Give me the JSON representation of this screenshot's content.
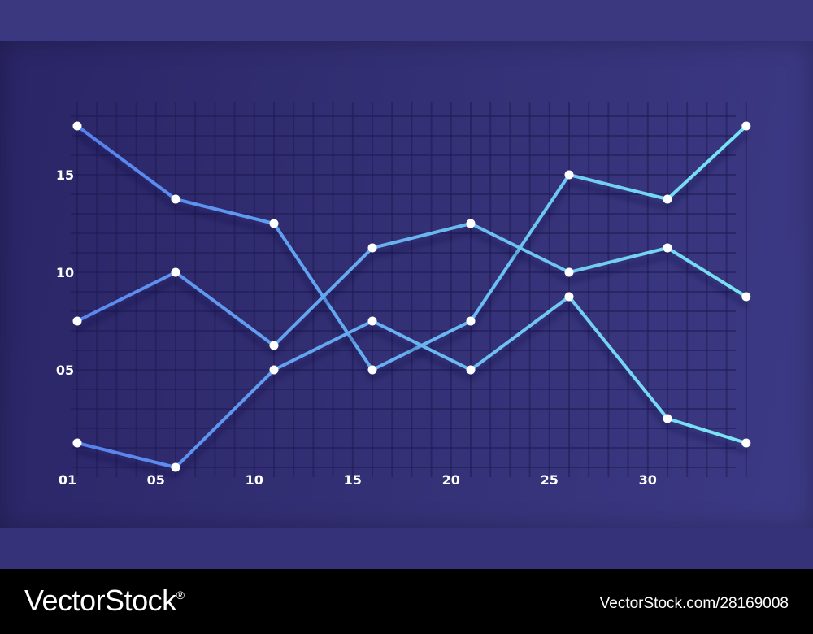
{
  "chart_data": {
    "type": "line",
    "title": "",
    "xlabel": "",
    "ylabel": "",
    "x": [
      1,
      6,
      11,
      16,
      21,
      26,
      31,
      35
    ],
    "x_ticks": [
      {
        "value": 1,
        "label": "01"
      },
      {
        "value": 5,
        "label": "05"
      },
      {
        "value": 10,
        "label": "10"
      },
      {
        "value": 15,
        "label": "15"
      },
      {
        "value": 20,
        "label": "20"
      },
      {
        "value": 25,
        "label": "25"
      },
      {
        "value": 30,
        "label": "30"
      }
    ],
    "y_ticks": [
      {
        "value": 5,
        "label": "05"
      },
      {
        "value": 10,
        "label": "10"
      },
      {
        "value": 15,
        "label": "15"
      }
    ],
    "xlim": [
      0,
      35
    ],
    "ylim": [
      0,
      19
    ],
    "grid": true,
    "legend": "none",
    "series": [
      {
        "values": [
          17.5,
          13.75,
          12.5,
          5,
          7.5,
          15,
          13.75,
          17.5
        ],
        "color": "#5b8cf0"
      },
      {
        "values": [
          7.5,
          10,
          6.25,
          11.25,
          12.5,
          10,
          11.25,
          8.75
        ],
        "color": "#62a8ee"
      },
      {
        "values": [
          1.25,
          0,
          5,
          7.5,
          5,
          8.75,
          2.5,
          1.25
        ],
        "color": "#6fd6f2"
      }
    ],
    "axis_color": "#e59be8",
    "point_color": "#ffffff"
  },
  "watermark": {
    "brand": "VectorStock",
    "registered": "®",
    "credit": "VectorStock.com/28169008"
  }
}
